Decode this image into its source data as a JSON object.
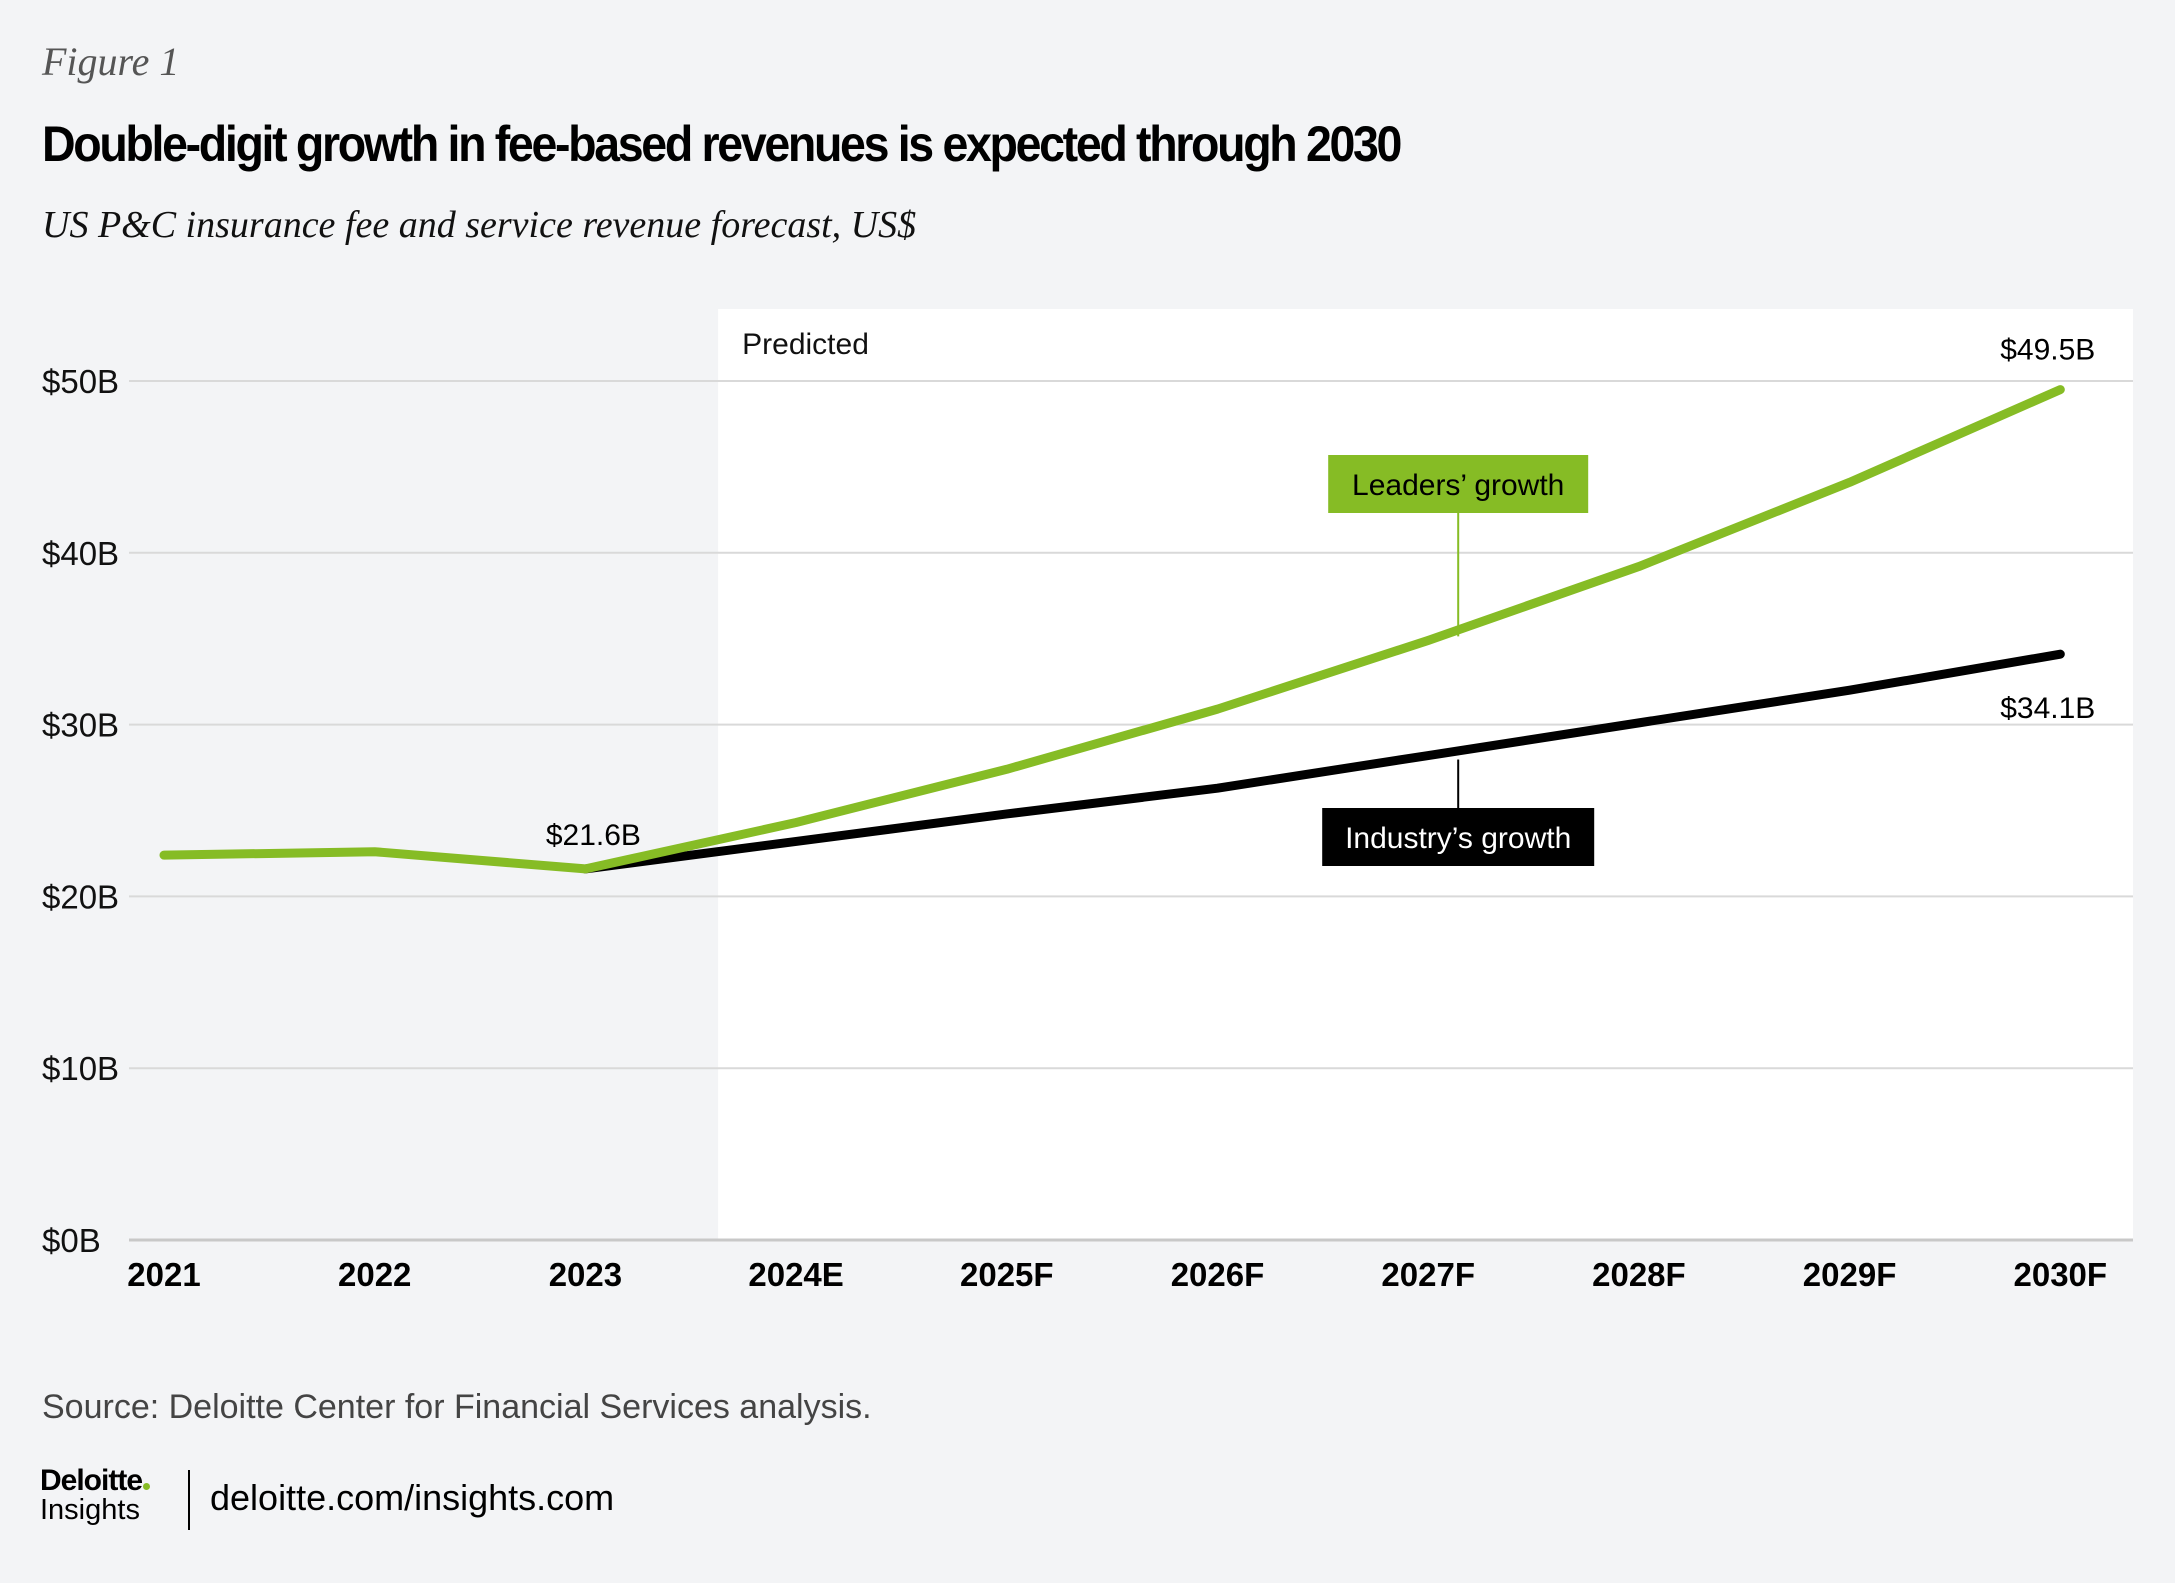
{
  "figure_label": "Figure 1",
  "title": "Double-digit growth in fee-based revenues is expected through 2030",
  "subtitle": "US P&C insurance fee and service revenue forecast, US$",
  "source": "Source: Deloitte Center for Financial Services analysis.",
  "footer": {
    "logo_brand": "Deloitte",
    "logo_sub": "Insights",
    "url": "deloitte.com/insights.com"
  },
  "colors": {
    "leaders": "#86bc25",
    "industry": "#000000",
    "predicted_bg": "#ffffff",
    "page_bg": "#f3f4f6",
    "grid": "#d9d9d9"
  },
  "chart_data": {
    "type": "line",
    "title": "Double-digit growth in fee-based revenues is expected through 2030",
    "subtitle": "US P&C insurance fee and service revenue forecast, US$",
    "xlabel": "",
    "ylabel": "",
    "categories": [
      "2021",
      "2022",
      "2023",
      "2024E",
      "2025F",
      "2026F",
      "2027F",
      "2028F",
      "2029F",
      "2030F"
    ],
    "ylim": [
      0,
      50
    ],
    "yticks": [
      0,
      10,
      20,
      30,
      40,
      50
    ],
    "ytick_labels": [
      "$0B",
      "$10B",
      "$20B",
      "$30B",
      "$40B",
      "$50B"
    ],
    "grid": true,
    "predicted_region": {
      "label": "Predicted",
      "from_category": "2023",
      "offset_fraction": 0.63
    },
    "series": [
      {
        "name": "Leaders' growth",
        "label": "Leaders’ growth",
        "color": "#86bc25",
        "values": [
          22.4,
          22.6,
          21.6,
          24.3,
          27.4,
          30.9,
          34.9,
          39.2,
          44.1,
          49.5
        ],
        "callout_category": "2027F",
        "callout_position": "above"
      },
      {
        "name": "Industry's growth",
        "label": "Industry’s growth",
        "color": "#000000",
        "values": [
          null,
          null,
          21.6,
          23.2,
          24.8,
          26.3,
          28.2,
          30.1,
          32.0,
          34.1
        ],
        "callout_category": "2027F",
        "callout_position": "below"
      }
    ],
    "annotations": [
      {
        "text": "$21.6B",
        "category": "2023",
        "value": 21.6,
        "position": "above"
      },
      {
        "text": "$49.5B",
        "category": "2030F",
        "value": 49.5,
        "position": "above"
      },
      {
        "text": "$34.1B",
        "category": "2030F",
        "value": 34.1,
        "position": "below"
      }
    ],
    "legend": "inline-callouts"
  }
}
